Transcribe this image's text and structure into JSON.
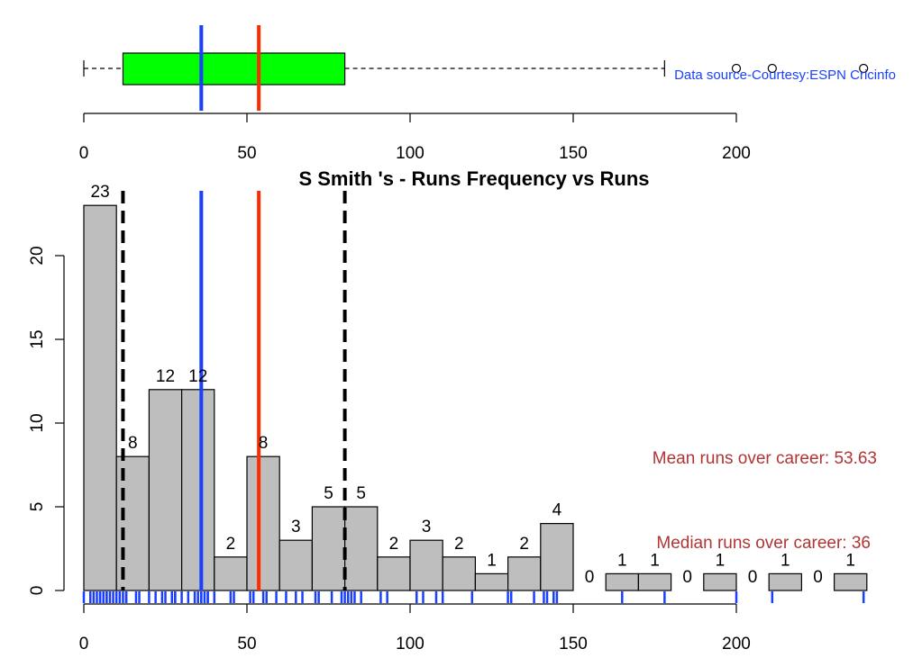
{
  "chart_data": [
    {
      "type": "boxplot",
      "x_ticks": [
        0,
        50,
        100,
        150,
        200
      ],
      "xlim": [
        0,
        240
      ],
      "box": {
        "whisker_low": 0,
        "q1": 12,
        "median": 36,
        "q3": 80,
        "whisker_high": 178
      },
      "outliers": [
        200,
        211,
        239
      ],
      "box_color": "#00ff00",
      "median_line_value": 36,
      "median_line_color": "#1a3fff",
      "mean_line_value": 53.63,
      "mean_line_color": "#ff2a00",
      "source_text": "Data source-Courtesy:ESPN Cricinfo",
      "source_color": "#1a3fff"
    },
    {
      "type": "bar",
      "title": "S Smith 's  - Runs Frequency vs Runs",
      "bin_width": 10,
      "bin_start": 0,
      "counts": [
        23,
        8,
        12,
        12,
        2,
        8,
        3,
        5,
        5,
        2,
        3,
        2,
        1,
        2,
        4,
        0,
        1,
        1,
        0,
        1,
        0,
        1,
        0,
        1
      ],
      "count_labels": [
        "23",
        "8",
        "12",
        "12",
        "2",
        "8",
        "3",
        "5",
        "5",
        "2",
        "3",
        "2",
        "1",
        "2",
        "4",
        "0",
        "1",
        "1",
        "0",
        "1",
        "0",
        "1",
        "0",
        "1"
      ],
      "bar_color": "#bebebe",
      "x_ticks": [
        0,
        50,
        100,
        150,
        200
      ],
      "y_ticks": [
        0,
        5,
        10,
        15,
        20
      ],
      "xlim": [
        0,
        240
      ],
      "ylim": [
        0,
        23
      ],
      "vlines": [
        {
          "value": 12,
          "color": "#000000",
          "style": "dashed"
        },
        {
          "value": 80,
          "color": "#000000",
          "style": "dashed"
        },
        {
          "value": 36,
          "color": "#1a3fff",
          "style": "solid"
        },
        {
          "value": 53.63,
          "color": "#ff2a00",
          "style": "solid"
        }
      ],
      "rug_color": "#1a3fff",
      "rug": [
        0,
        2,
        3,
        4,
        5,
        5,
        6,
        7,
        7,
        8,
        9,
        10,
        11,
        12,
        13,
        13,
        16,
        17,
        20,
        22,
        24,
        25,
        27,
        28,
        28,
        30,
        32,
        34,
        35,
        36,
        36,
        37,
        38,
        38,
        40,
        45,
        46,
        51,
        52,
        55,
        56,
        59,
        62,
        65,
        67,
        71,
        72,
        76,
        79,
        80,
        81,
        82,
        83,
        85,
        91,
        93,
        102,
        104,
        108,
        110,
        119,
        130,
        131,
        138,
        141,
        142,
        144,
        145,
        165,
        178,
        200,
        211,
        239
      ],
      "annotations": [
        {
          "text": "Mean runs over career: 53.63",
          "color": "#b03535"
        },
        {
          "text": "Median runs over career: 36",
          "color": "#b03535"
        }
      ]
    }
  ]
}
